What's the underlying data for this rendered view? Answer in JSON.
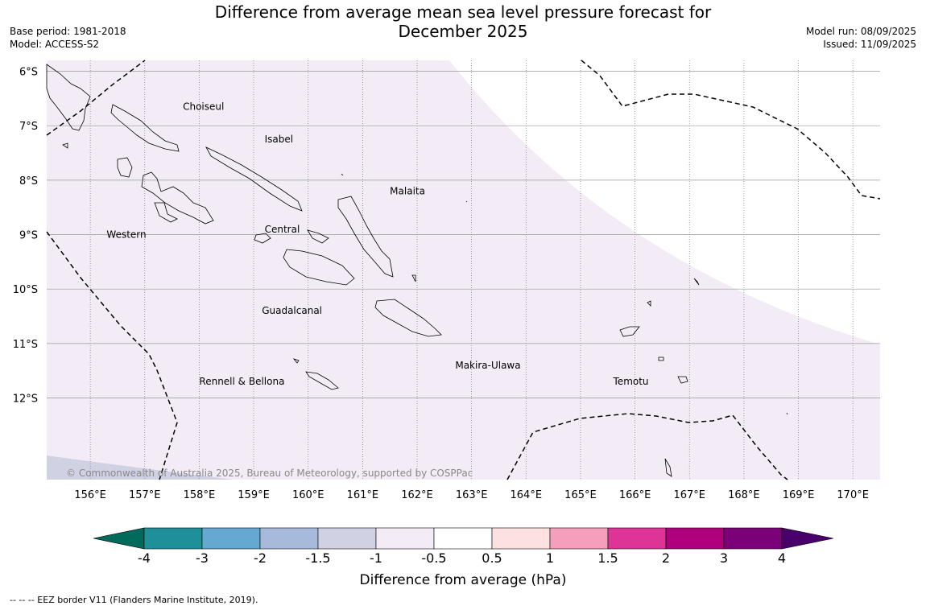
{
  "title": "Difference from average mean sea level pressure forecast for December 2025",
  "meta": {
    "base_period": "Base period: 1981-2018",
    "model": "Model: ACCESS-S2",
    "model_run": "Model run: 08/09/2025",
    "issued": "Issued: 11/09/2025"
  },
  "copyright": "© Commonwealth of Australia 2025, Bureau of Meteorology, supported by COSPPac",
  "footnote": "--  --  -- EEZ border V11 (Flanders Marine Institute, 2019).",
  "places": [
    {
      "name": "Choiseul",
      "lon": 157.7,
      "lat": -6.65
    },
    {
      "name": "Isabel",
      "lon": 159.2,
      "lat": -7.25
    },
    {
      "name": "Malaita",
      "lon": 161.5,
      "lat": -8.2
    },
    {
      "name": "Western",
      "lon": 156.3,
      "lat": -9.0
    },
    {
      "name": "Central",
      "lon": 159.2,
      "lat": -8.9
    },
    {
      "name": "Guadalcanal",
      "lon": 159.15,
      "lat": -10.4
    },
    {
      "name": "Makira-Ulawa",
      "lon": 162.7,
      "lat": -11.4
    },
    {
      "name": "Rennell & Bellona",
      "lon": 158.0,
      "lat": -11.7
    },
    {
      "name": "Temotu",
      "lon": 165.6,
      "lat": -11.7
    }
  ],
  "axes": {
    "lon_ticks": [
      "156°E",
      "157°E",
      "158°E",
      "159°E",
      "160°E",
      "161°E",
      "162°E",
      "163°E",
      "164°E",
      "165°E",
      "166°E",
      "167°E",
      "168°E",
      "169°E",
      "170°E"
    ],
    "lat_ticks": [
      "6°S",
      "7°S",
      "8°S",
      "9°S",
      "10°S",
      "11°S",
      "12°S"
    ],
    "lon_values": [
      156,
      157,
      158,
      159,
      160,
      161,
      162,
      163,
      164,
      165,
      166,
      167,
      168,
      169,
      170
    ],
    "lat_values": [
      -6,
      -7,
      -8,
      -9,
      -10,
      -11,
      -12
    ],
    "lon_range": [
      155.2,
      170.5
    ],
    "lat_range": [
      -13.5,
      -5.8
    ]
  },
  "colorbar": {
    "label": "Difference from average (hPa)",
    "tick_labels": [
      "-4",
      "-3",
      "-2",
      "-1.5",
      "-1",
      "-0.5",
      "0.5",
      "1",
      "1.5",
      "2",
      "3",
      "4"
    ],
    "colors": [
      "#006a5c",
      "#1f8f9a",
      "#65a8d0",
      "#a8badb",
      "#d1d1e4",
      "#f3ecf6",
      "#ffffff",
      "#fde0e0",
      "#f69fbc",
      "#dd3497",
      "#ae017e",
      "#7a0177",
      "#49006a"
    ]
  },
  "fill_colors": {
    "main_area": "#f3ecf6",
    "lower_left": "#d1d1e4",
    "upper_right": "#ffffff"
  }
}
